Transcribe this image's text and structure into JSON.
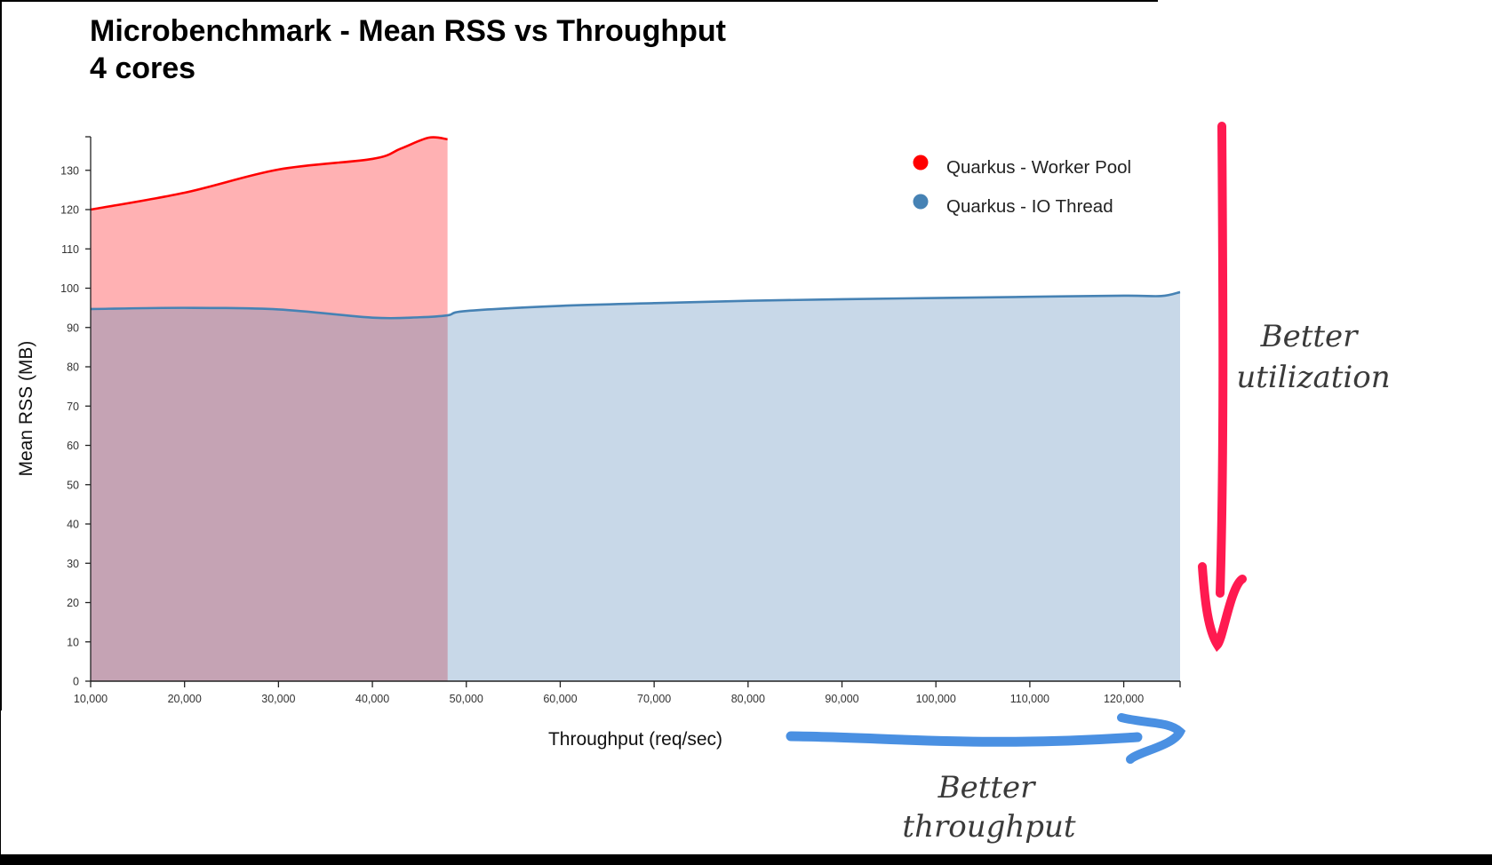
{
  "chart_data": {
    "type": "area",
    "title": "Microbenchmark - Mean RSS vs Throughput",
    "subtitle": "4 cores",
    "xlabel": "Throughput (req/sec)",
    "ylabel": "Mean RSS (MB)",
    "xlim": [
      10000,
      126000
    ],
    "ylim": [
      0,
      138.5
    ],
    "x_ticks": [
      "10,000",
      "20,000",
      "30,000",
      "40,000",
      "50,000",
      "60,000",
      "70,000",
      "80,000",
      "90,000",
      "100,000",
      "110,000",
      "120,000"
    ],
    "y_ticks": [
      "0",
      "10",
      "20",
      "30",
      "40",
      "50",
      "60",
      "70",
      "80",
      "90",
      "100",
      "110",
      "120",
      "130"
    ],
    "grid": false,
    "legend_position": "top-right",
    "series": [
      {
        "name": "Quarkus - Worker Pool",
        "color": "#ff0000",
        "fill": "#ffb0b2",
        "x": [
          10000,
          20000,
          30000,
          40000,
          43000,
          46000,
          48000
        ],
        "values": [
          120.0,
          124.3,
          130.2,
          132.9,
          135.5,
          138.3,
          137.9
        ]
      },
      {
        "name": "Quarkus - IO Thread",
        "color": "#4682b4",
        "fill": "#c8d8e8",
        "x": [
          10000,
          20000,
          30000,
          40000,
          45000,
          48000,
          50000,
          60000,
          70000,
          80000,
          90000,
          100000,
          110000,
          120000,
          124000,
          126000
        ],
        "values": [
          94.7,
          95.0,
          94.6,
          92.5,
          92.6,
          93.1,
          94.2,
          95.5,
          96.2,
          96.8,
          97.2,
          97.5,
          97.8,
          98.1,
          98.0,
          99.0
        ]
      }
    ],
    "annotations": [
      {
        "text_line1": "Better",
        "text_line2": "utilization",
        "arrow": "down",
        "color": "#ff1a50"
      },
      {
        "text_line1": "Better",
        "text_line2": "throughput",
        "arrow": "right",
        "color": "#4a90e2"
      }
    ]
  },
  "header": {
    "title": "Microbenchmark - Mean RSS vs Throughput",
    "subtitle": "4 cores"
  },
  "legend": {
    "items": [
      {
        "label": "Quarkus - Worker Pool",
        "color": "#ff0000"
      },
      {
        "label": "Quarkus - IO Thread",
        "color": "#4682b4"
      }
    ]
  },
  "annotations": {
    "utilization": {
      "line1": "Better",
      "line2": "utilization"
    },
    "throughput": {
      "line1": "Better",
      "line2": "throughput"
    }
  }
}
